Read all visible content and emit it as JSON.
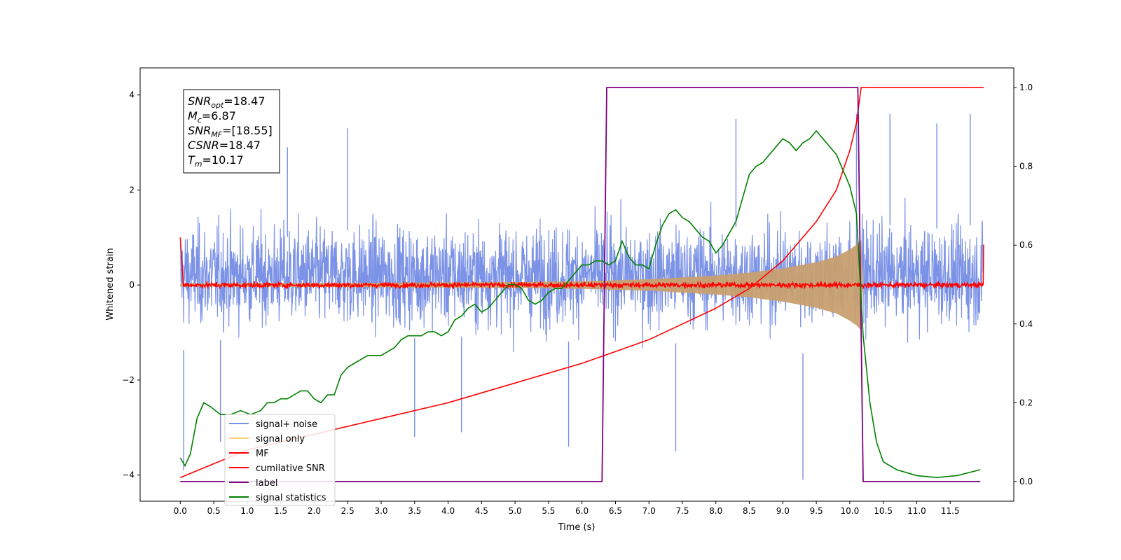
{
  "chart_data": {
    "type": "line",
    "xlabel": "Time (s)",
    "ylabel": "Whitened strain",
    "xlim": [
      -0.6,
      12.45
    ],
    "ylim_left": [
      -4.55,
      4.57
    ],
    "ylim_right": [
      -0.05,
      1.05
    ],
    "x_ticks": [
      "0.0",
      "0.5",
      "1.0",
      "1.5",
      "2.0",
      "2.5",
      "3.0",
      "3.5",
      "4.0",
      "4.5",
      "5.0",
      "5.5",
      "6.0",
      "6.5",
      "7.0",
      "7.5",
      "8.0",
      "8.5",
      "9.0",
      "9.5",
      "10.0",
      "10.5",
      "11.0",
      "11.5"
    ],
    "y_left_ticks": [
      "4",
      "2",
      "0",
      "−2",
      "−4"
    ],
    "y_left_tick_values": [
      4,
      2,
      0,
      -2,
      -4
    ],
    "y_right_ticks": [
      "1.0",
      "0.8",
      "0.6",
      "0.4",
      "0.2",
      "0.0"
    ],
    "y_right_tick_values": [
      1.0,
      0.8,
      0.6,
      0.4,
      0.2,
      0.0
    ],
    "legend_position": "lower-left",
    "legend": [
      {
        "label": "signal+ noise",
        "color": "#7890e6"
      },
      {
        "label": "signal only",
        "color": "#ffd27a"
      },
      {
        "label": "MF",
        "color": "#ff0000"
      },
      {
        "label": "cumilative SNR",
        "color": "#ff0000"
      },
      {
        "label": "label",
        "color": "#800080"
      },
      {
        "label": "signal statistics",
        "color": "#008000"
      }
    ],
    "annotations": [
      {
        "main": "SNR",
        "sub": "opt",
        "rest": "=18.47"
      },
      {
        "main": "M",
        "sub": "c",
        "rest": "=6.87"
      },
      {
        "main": "SNR",
        "sub": "MF",
        "rest": "=[18.55]"
      },
      {
        "main": "CSNR",
        "sub": "",
        "rest": "=18.47"
      },
      {
        "main": "T",
        "sub": "m",
        "rest": "=10.17"
      }
    ],
    "series": [
      {
        "name": "signal+ noise",
        "axis": "left",
        "color": "#7890e6",
        "x_range": [
          0.0,
          12.0
        ],
        "typical_range": [
          -2.0,
          2.4
        ],
        "extreme_values": [
          {
            "x": 0.05,
            "y": -3.9
          },
          {
            "x": 0.6,
            "y": -3.3
          },
          {
            "x": 1.6,
            "y": 2.9
          },
          {
            "x": 2.5,
            "y": 3.3
          },
          {
            "x": 3.5,
            "y": -3.2
          },
          {
            "x": 4.2,
            "y": -3.1
          },
          {
            "x": 5.8,
            "y": -3.4
          },
          {
            "x": 7.4,
            "y": -3.5
          },
          {
            "x": 8.3,
            "y": 3.5
          },
          {
            "x": 9.3,
            "y": -4.1
          },
          {
            "x": 10.1,
            "y": 3.6
          },
          {
            "x": 10.6,
            "y": 3.6
          },
          {
            "x": 11.3,
            "y": 3.4
          },
          {
            "x": 11.8,
            "y": 3.6
          }
        ]
      },
      {
        "name": "signal only",
        "axis": "left",
        "color": "#c8a070",
        "x_range": [
          0.0,
          10.2
        ],
        "envelope": {
          "t": [
            5.0,
            6.0,
            7.0,
            8.0,
            8.5,
            9.0,
            9.5,
            9.8,
            10.0,
            10.1,
            10.17
          ],
          "amplitude": [
            0.06,
            0.08,
            0.12,
            0.2,
            0.26,
            0.35,
            0.48,
            0.6,
            0.75,
            0.85,
            0.95
          ]
        }
      },
      {
        "name": "MF",
        "axis": "left",
        "color": "#ff0000",
        "x_range": [
          0.0,
          12.0
        ],
        "noise_amplitude": 0.08,
        "endpoints": [
          {
            "x": 0.0,
            "y": 1.0
          },
          {
            "x": 12.0,
            "y": 0.85
          }
        ]
      },
      {
        "name": "cumilative SNR",
        "axis": "right",
        "color": "#ff0000",
        "x": [
          0.0,
          1.0,
          2.0,
          3.0,
          4.0,
          5.0,
          6.0,
          6.5,
          7.0,
          7.5,
          8.0,
          8.5,
          9.0,
          9.5,
          9.8,
          10.0,
          10.1,
          10.17,
          10.2,
          12.0
        ],
        "y": [
          0.01,
          0.08,
          0.12,
          0.16,
          0.2,
          0.25,
          0.3,
          0.33,
          0.36,
          0.4,
          0.44,
          0.49,
          0.56,
          0.66,
          0.74,
          0.84,
          0.91,
          1.0,
          1.0,
          1.0
        ]
      },
      {
        "name": "label",
        "axis": "right",
        "color": "#800080",
        "x": [
          0.0,
          6.3,
          6.37,
          10.12,
          10.2,
          11.95
        ],
        "y": [
          0.0,
          0.0,
          1.0,
          1.0,
          0.0,
          0.0
        ]
      },
      {
        "name": "signal statistics",
        "axis": "right",
        "color": "#008000",
        "x": [
          0.0,
          0.07,
          0.15,
          0.25,
          0.35,
          0.45,
          0.6,
          0.75,
          0.9,
          1.05,
          1.2,
          1.3,
          1.4,
          1.5,
          1.6,
          1.7,
          1.8,
          1.9,
          2.0,
          2.1,
          2.2,
          2.3,
          2.4,
          2.5,
          2.6,
          2.7,
          2.8,
          2.9,
          3.0,
          3.1,
          3.2,
          3.3,
          3.4,
          3.5,
          3.6,
          3.7,
          3.8,
          3.9,
          4.0,
          4.1,
          4.2,
          4.3,
          4.4,
          4.5,
          4.6,
          4.7,
          4.8,
          4.9,
          5.0,
          5.1,
          5.2,
          5.3,
          5.4,
          5.5,
          5.6,
          5.7,
          5.8,
          5.9,
          6.0,
          6.1,
          6.2,
          6.3,
          6.4,
          6.5,
          6.6,
          6.7,
          6.8,
          6.9,
          7.0,
          7.1,
          7.2,
          7.3,
          7.4,
          7.5,
          7.6,
          7.7,
          7.8,
          7.9,
          8.0,
          8.1,
          8.2,
          8.3,
          8.4,
          8.5,
          8.6,
          8.7,
          8.8,
          8.9,
          9.0,
          9.1,
          9.2,
          9.3,
          9.4,
          9.5,
          9.6,
          9.7,
          9.8,
          9.9,
          10.0,
          10.1,
          10.2,
          10.3,
          10.4,
          10.5,
          10.7,
          11.0,
          11.3,
          11.6,
          11.95
        ],
        "y": [
          0.06,
          0.04,
          0.07,
          0.16,
          0.2,
          0.19,
          0.17,
          0.17,
          0.18,
          0.17,
          0.18,
          0.2,
          0.2,
          0.21,
          0.21,
          0.22,
          0.23,
          0.23,
          0.21,
          0.2,
          0.22,
          0.22,
          0.27,
          0.29,
          0.3,
          0.31,
          0.32,
          0.32,
          0.32,
          0.33,
          0.34,
          0.36,
          0.37,
          0.37,
          0.37,
          0.38,
          0.38,
          0.37,
          0.38,
          0.41,
          0.42,
          0.44,
          0.45,
          0.43,
          0.44,
          0.46,
          0.48,
          0.5,
          0.5,
          0.49,
          0.46,
          0.45,
          0.46,
          0.48,
          0.49,
          0.49,
          0.51,
          0.53,
          0.55,
          0.55,
          0.56,
          0.56,
          0.55,
          0.56,
          0.61,
          0.57,
          0.55,
          0.55,
          0.54,
          0.6,
          0.65,
          0.68,
          0.69,
          0.67,
          0.66,
          0.64,
          0.62,
          0.61,
          0.58,
          0.6,
          0.63,
          0.66,
          0.72,
          0.78,
          0.8,
          0.81,
          0.83,
          0.85,
          0.87,
          0.86,
          0.84,
          0.86,
          0.87,
          0.89,
          0.87,
          0.85,
          0.83,
          0.79,
          0.75,
          0.68,
          0.37,
          0.2,
          0.1,
          0.05,
          0.03,
          0.015,
          0.01,
          0.015,
          0.03
        ]
      }
    ]
  }
}
